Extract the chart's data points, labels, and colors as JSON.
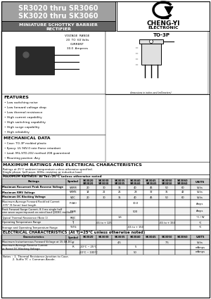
{
  "title_line1": "SR3020 thru SR3060",
  "title_line2": "SK3020 thru SK3060",
  "subtitle1": "MINIATURE SCHOTTKY BARRIER",
  "subtitle2": "RECTIFIER",
  "company_name": "CHENG-YI",
  "company_sub": "ELECTRONIC",
  "voltage_range_lines": [
    "VOLTAGE  RANGE",
    "20  TO  60 Volts",
    "CURRENT",
    "30.0  Amperes"
  ],
  "package": "TO-3P",
  "features_title": "FEATURES",
  "features": [
    "Low switching noise",
    "Low forward voltage drop",
    "Low thermal resistance",
    "High current capability",
    "High switching capability",
    "High surge capability",
    "High reliability"
  ],
  "mech_title": "MECHANICAL DATA",
  "mech": [
    "Case: TO-3P molded plastic",
    "Epoxy: UL 94V-0 rate flame retardant",
    "Lead: MIL-STD-202 method 208 guaranteed",
    "Mounting position: Any"
  ],
  "max_ratings_title": "MAXIMUM RATINGS AND ELECTRICAL CHARACTERISTICS",
  "max_ratings_note1": "Ratings at 25°C ambient temperature unless otherwise specified.",
  "max_ratings_note2": "Single phase, half wave, 60Hz, resistive or inductive load.",
  "max_ratings_note3": "For capacitive load, derate current by 20%.",
  "max_ratings_subtitle": "MAXIMUM RATINGS: At Tas=25°C unless otherwise noted",
  "col_headers_top": [
    "",
    "Symbol",
    "SK3020",
    "SK3030",
    "SK3035",
    "SK3040",
    "SK3045",
    "SK3050",
    "SK3060",
    "UNITS"
  ],
  "col_headers_bot": [
    "Ratings",
    "Symbol",
    "SR3020",
    "SR3030",
    "SR3035",
    "SR3040",
    "SR3045",
    "SR3050",
    "SR3060",
    "UNITS"
  ],
  "max_rows": [
    [
      "Maximum Recurrent Peak Reverse Voltage",
      "VRRM",
      "20",
      "30",
      "35",
      "40",
      "45",
      "50",
      "60",
      "Volts"
    ],
    [
      "Maximum RMS Voltage",
      "VRMS",
      "14",
      "21",
      "25",
      "28",
      "32",
      "35",
      "42",
      "Volts"
    ],
    [
      "Maximum DC Blocking Voltage",
      "VDC",
      "20",
      "30",
      "35",
      "40",
      "45",
      "50",
      "60",
      "Volts"
    ],
    [
      "Maximum Average Forward Rectified Current\n.375\" (9.5mm) lead length",
      "IF(AV)",
      "",
      "",
      "",
      "30.0",
      "",
      "",
      "",
      "Amps"
    ],
    [
      "Peak Forward Surge Current, 8.3 ms single half\nsine wave superimposed on rated load (JEDEC method)",
      "IFSM",
      "",
      "",
      "",
      "500",
      "",
      "",
      "",
      "Amps"
    ],
    [
      "Typical Thermal Resistance (Note 1)",
      "RθJC",
      "",
      "",
      "1.6",
      "",
      "",
      "",
      "",
      "°C / W"
    ],
    [
      "Operating Temperature Range",
      "TJ",
      "",
      "-65 to + 125",
      "",
      "",
      "",
      "-65 to + 150",
      "",
      "°C"
    ],
    [
      "Storage and Operating Temperature Range",
      "TSTG",
      "",
      "",
      "",
      "-65 to + 150",
      "",
      "",
      "",
      "°C"
    ]
  ],
  "elec_title": "ELECTRICAL CHARACTERISTICS (At TJ=25°C unless otherwise noted)",
  "elec_col_headers": [
    "Characteristics",
    "Symbol",
    "SK3020",
    "SK3030",
    "SK3035",
    "SK3040",
    "SK3045",
    "SK3050",
    "SK3060",
    "UNITS"
  ],
  "elec_rows": [
    [
      "Maximum Instantaneous Forward Voltage at 15.0A DC",
      "VF",
      "",
      "",
      "4.5",
      "",
      "",
      "7.5",
      "",
      "Volts"
    ],
    [
      "Maximum Average Reverse Current\nat Rated DC Blocking Voltage",
      "IR",
      "-20°C ~ 25°C",
      "",
      "",
      "5",
      "",
      "",
      "",
      "mAmps"
    ],
    [
      "",
      "",
      "-20°C ~ 100°C",
      "",
      "",
      "50",
      "",
      "",
      "",
      "mAmps"
    ]
  ],
  "notes": [
    "Notes :  1. Thermal Resistance Junction to Case.",
    "           2. Suffix 'R' = Common Anode."
  ],
  "bg_color": "#ffffff",
  "title_bg": "#888888",
  "subtitle_bg": "#666666",
  "header_bg": "#c8c8c8",
  "row_alt_bg": "#f0f0f0"
}
